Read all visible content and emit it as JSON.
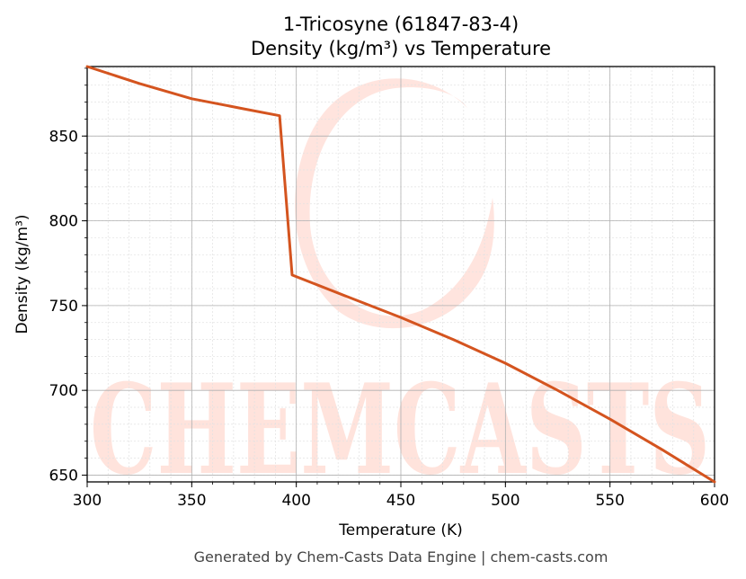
{
  "chart_data": {
    "type": "line",
    "title": "1-Tricosyne (61847-83-4)",
    "subtitle": "Density (kg/m³) vs Temperature",
    "xlabel": "Temperature (K)",
    "ylabel": "Density (kg/m³)",
    "xlim": [
      300,
      600
    ],
    "ylim": [
      646,
      891
    ],
    "xticks": [
      300,
      350,
      400,
      450,
      500,
      550,
      600
    ],
    "yticks": [
      650,
      700,
      750,
      800,
      850
    ],
    "grid": true,
    "line_color": "#d4541f",
    "series": [
      {
        "x": [
          300,
          325,
          350,
          375,
          392,
          398,
          425,
          450,
          475,
          500,
          525,
          550,
          575,
          600
        ],
        "y": [
          891,
          881,
          872,
          866,
          862,
          768,
          755,
          743,
          730,
          716,
          700,
          683,
          665,
          646
        ]
      }
    ]
  },
  "watermark": {
    "text": "CHEMCASTS"
  },
  "footer": "Generated by Chem-Casts Data Engine | chem-casts.com"
}
